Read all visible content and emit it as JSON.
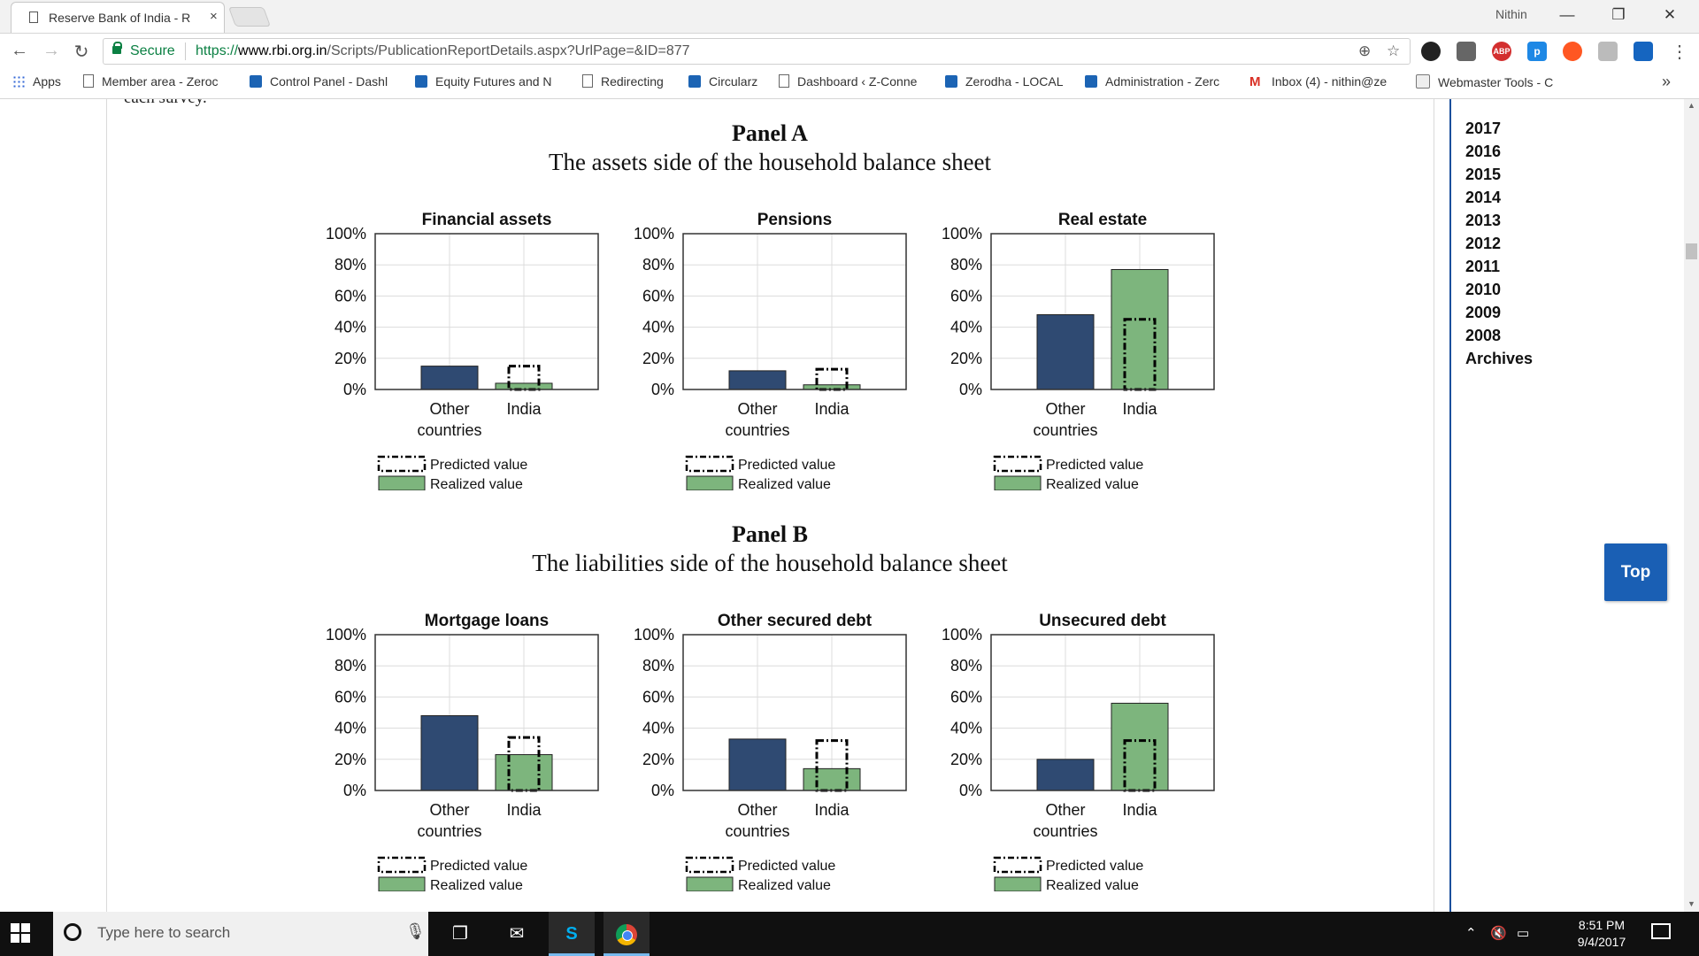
{
  "browser": {
    "tab_title": "Reserve Bank of India - R",
    "tab_close": "×",
    "user_name": "Nithin",
    "win_minimize": "—",
    "win_restore": "❐",
    "win_close": "✕",
    "secure_label": "Secure",
    "url_scheme": "https://",
    "url_host": "www.rbi.org.in",
    "url_path": "/Scripts/PublicationReportDetails.aspx?UrlPage=&ID=877",
    "extensions": [
      "ABP",
      "p"
    ]
  },
  "bookmarks": [
    {
      "label": "Apps",
      "icon": "apps-grid-icon"
    },
    {
      "label": "Member area - Zeroc",
      "icon": "page-icon"
    },
    {
      "label": "Control Panel - Dashl",
      "icon": "bookmark-blue-icon"
    },
    {
      "label": "Equity Futures and N",
      "icon": "bookmark-blue-icon"
    },
    {
      "label": "Redirecting",
      "icon": "page-icon"
    },
    {
      "label": "Circularz",
      "icon": "bookmark-blue-icon"
    },
    {
      "label": "Dashboard ‹ Z-Conne",
      "icon": "page-icon"
    },
    {
      "label": "Zerodha - LOCAL",
      "icon": "bookmark-blue-icon"
    },
    {
      "label": "Administration - Zerc",
      "icon": "bookmark-blue-icon"
    },
    {
      "label": "Inbox (4) - nithin@ze",
      "icon": "gmail-icon"
    },
    {
      "label": "Webmaster Tools - C",
      "icon": "webmaster-icon"
    }
  ],
  "bookmarks_more": "»",
  "page": {
    "cut_text": "each survey.",
    "panel_a": {
      "title": "Panel A",
      "subtitle": "The assets side of the household balance sheet"
    },
    "panel_b": {
      "title": "Panel B",
      "subtitle": "The liabilities side of the household balance sheet"
    },
    "sidebar_years": [
      "2017",
      "2016",
      "2015",
      "2014",
      "2013",
      "2012",
      "2011",
      "2010",
      "2009",
      "2008",
      "Archives"
    ],
    "top_button": "Top",
    "colors": {
      "other_countries": "#2f4a72",
      "india": "#7db57d"
    }
  },
  "chart_data": [
    {
      "type": "bar",
      "title": "Financial assets",
      "categories": [
        "Other countries",
        "India"
      ],
      "ylim": [
        0,
        100
      ],
      "yticks": [
        "0%",
        "20%",
        "40%",
        "60%",
        "80%",
        "100%"
      ],
      "series": [
        {
          "name": "Realized value",
          "values": [
            15,
            4
          ]
        },
        {
          "name": "Predicted value",
          "values": [
            null,
            15
          ]
        }
      ],
      "legend": [
        "Predicted value",
        "Realized value"
      ]
    },
    {
      "type": "bar",
      "title": "Pensions",
      "categories": [
        "Other countries",
        "India"
      ],
      "ylim": [
        0,
        100
      ],
      "yticks": [
        "0%",
        "20%",
        "40%",
        "60%",
        "80%",
        "100%"
      ],
      "series": [
        {
          "name": "Realized value",
          "values": [
            12,
            3
          ]
        },
        {
          "name": "Predicted value",
          "values": [
            null,
            13
          ]
        }
      ],
      "legend": [
        "Predicted value",
        "Realized value"
      ]
    },
    {
      "type": "bar",
      "title": "Real estate",
      "categories": [
        "Other countries",
        "India"
      ],
      "ylim": [
        0,
        100
      ],
      "yticks": [
        "0%",
        "20%",
        "40%",
        "60%",
        "80%",
        "100%"
      ],
      "series": [
        {
          "name": "Realized value",
          "values": [
            48,
            77
          ]
        },
        {
          "name": "Predicted value",
          "values": [
            null,
            45
          ]
        }
      ],
      "legend": [
        "Predicted value",
        "Realized value"
      ]
    },
    {
      "type": "bar",
      "title": "Mortgage loans",
      "categories": [
        "Other countries",
        "India"
      ],
      "ylim": [
        0,
        100
      ],
      "yticks": [
        "0%",
        "20%",
        "40%",
        "60%",
        "80%",
        "100%"
      ],
      "series": [
        {
          "name": "Realized value",
          "values": [
            48,
            23
          ]
        },
        {
          "name": "Predicted value",
          "values": [
            null,
            34
          ]
        }
      ],
      "legend": [
        "Predicted value",
        "Realized value"
      ]
    },
    {
      "type": "bar",
      "title": "Other secured debt",
      "categories": [
        "Other countries",
        "India"
      ],
      "ylim": [
        0,
        100
      ],
      "yticks": [
        "0%",
        "20%",
        "40%",
        "60%",
        "80%",
        "100%"
      ],
      "series": [
        {
          "name": "Realized value",
          "values": [
            33,
            14
          ]
        },
        {
          "name": "Predicted value",
          "values": [
            null,
            32
          ]
        }
      ],
      "legend": [
        "Predicted value",
        "Realized value"
      ]
    },
    {
      "type": "bar",
      "title": "Unsecured debt",
      "categories": [
        "Other countries",
        "India"
      ],
      "ylim": [
        0,
        100
      ],
      "yticks": [
        "0%",
        "20%",
        "40%",
        "60%",
        "80%",
        "100%"
      ],
      "series": [
        {
          "name": "Realized value",
          "values": [
            20,
            56
          ]
        },
        {
          "name": "Predicted value",
          "values": [
            null,
            32
          ]
        }
      ],
      "legend": [
        "Predicted value",
        "Realized value"
      ]
    }
  ],
  "taskbar": {
    "search_placeholder": "Type here to search",
    "time": "8:51 PM",
    "date": "9/4/2017"
  }
}
